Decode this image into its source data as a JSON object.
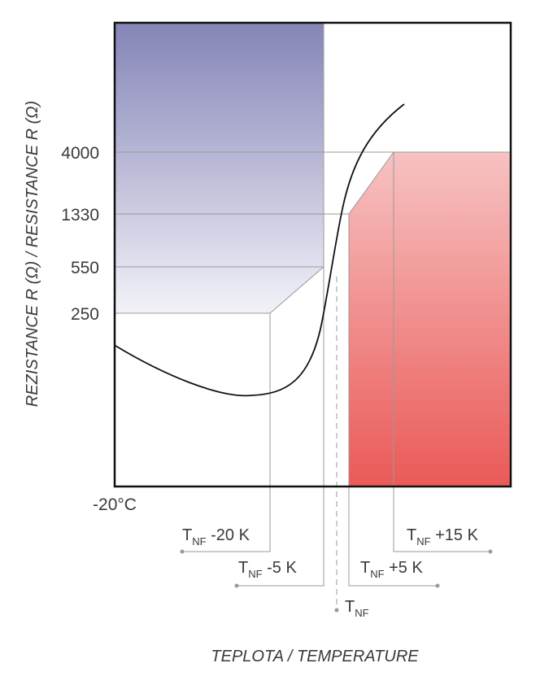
{
  "chart_data": {
    "type": "line",
    "ylabel": "REZISTANCE R (Ω) / RESISTANCE R (Ω)",
    "xlabel": "TEPLOTA / TEMPERATURE",
    "y_ticks": [
      "4000",
      "1330",
      "550",
      "250"
    ],
    "x_start_label": "-20°C",
    "grid": false,
    "regions": [
      {
        "name": "low-resistance-fault",
        "color_top": "#8585b8",
        "color_bottom": "#f2f2f8"
      },
      {
        "name": "high-resistance-fault",
        "color_top": "#f7c2c2",
        "color_bottom": "#ea5a58"
      }
    ],
    "markers": [
      {
        "base": "T",
        "sub": "NF",
        "suffix": " -20 K"
      },
      {
        "base": "T",
        "sub": "NF",
        "suffix": " -5 K"
      },
      {
        "base": "T",
        "sub": "NF",
        "suffix": ""
      },
      {
        "base": "T",
        "sub": "NF",
        "suffix": " +5 K"
      },
      {
        "base": "T",
        "sub": "NF",
        "suffix": " +15 K"
      }
    ],
    "curve_color": "#111111"
  }
}
